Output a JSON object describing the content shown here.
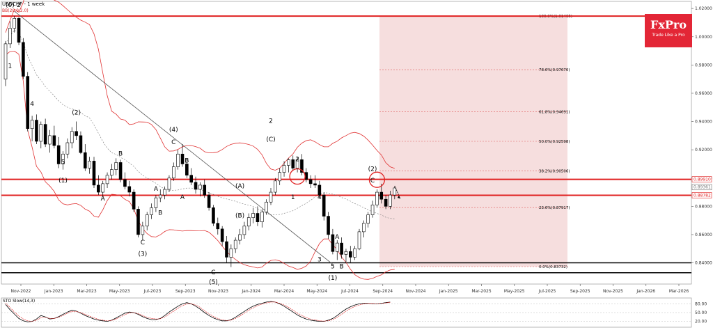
{
  "header": {
    "title": "USDCHF - 1 week",
    "subtitle": "BB(20,0,2.0)"
  },
  "logo": {
    "brand": "FxPro",
    "tagline": "Trade Like a Pro"
  },
  "chart_data": {
    "type": "candlestick",
    "symbol": "USDCHF",
    "timeframe": "1 week",
    "ylim": [
      0.825,
      1.025
    ],
    "y_ticks": [
      "1.02000",
      "1.00000",
      "0.98000",
      "0.96000",
      "0.94000",
      "0.92000",
      "0.90000",
      "0.88000",
      "0.86000",
      "0.84000"
    ],
    "x_ticks": [
      "Nov-2022",
      "Jan-2023",
      "Mar-2023",
      "May-2023",
      "Jul-2023",
      "Sep-2023",
      "Nov-2023",
      "Jan-2024",
      "Mar-2024",
      "May-2024",
      "Jul-2024",
      "Sep-2024",
      "Nov-2024",
      "Jan-2025",
      "Mar-2025",
      "May-2025",
      "Jul-2025",
      "Sep-2025",
      "Nov-2025",
      "Jan-2026",
      "Mar-2026"
    ],
    "price_labels": [
      {
        "value": "0.89910",
        "color": "#e02020"
      },
      {
        "value": "0.89361",
        "color": "#777777"
      },
      {
        "value": "0.88782",
        "color": "#e02020"
      }
    ],
    "horizontal_lines": [
      {
        "value": 1.0146,
        "color": "#e02020",
        "width": 2
      },
      {
        "value": 0.8991,
        "color": "#e02020",
        "width": 2
      },
      {
        "value": 0.8878,
        "color": "#e02020",
        "width": 2
      },
      {
        "value": 0.84,
        "color": "#000000",
        "width": 1.5
      },
      {
        "value": 0.833,
        "color": "#000000",
        "width": 1.5
      }
    ],
    "fibonacci": {
      "levels": [
        {
          "label": "100.0%(1.01465)",
          "value": 1.01465
        },
        {
          "label": "78.6%(0.97670)",
          "value": 0.9767
        },
        {
          "label": "61.8%(0.94691)",
          "value": 0.94691
        },
        {
          "label": "50.0%(0.92598)",
          "value": 0.92598
        },
        {
          "label": "38.2%(0.90506)",
          "value": 0.90506
        },
        {
          "label": "23.6%(0.87917)",
          "value": 0.87917
        },
        {
          "label": "0.0%(0.83732)",
          "value": 0.83732
        }
      ],
      "zone_color": "#f6dede"
    },
    "candles": [
      [
        0.97,
        0.997,
        0.965,
        0.995
      ],
      [
        0.995,
        1.011,
        0.992,
        1.006
      ],
      [
        1.006,
        1.0147,
        1.003,
        1.013
      ],
      [
        1.013,
        1.014,
        0.994,
        0.996
      ],
      [
        0.996,
        0.999,
        0.97,
        0.972
      ],
      [
        0.972,
        0.975,
        0.933,
        0.935
      ],
      [
        0.935,
        0.944,
        0.926,
        0.941
      ],
      [
        0.941,
        0.945,
        0.924,
        0.926
      ],
      [
        0.926,
        0.94,
        0.921,
        0.938
      ],
      [
        0.938,
        0.942,
        0.922,
        0.924
      ],
      [
        0.924,
        0.934,
        0.918,
        0.93
      ],
      [
        0.93,
        0.937,
        0.921,
        0.923
      ],
      [
        0.923,
        0.929,
        0.907,
        0.91
      ],
      [
        0.91,
        0.919,
        0.906,
        0.917
      ],
      [
        0.917,
        0.928,
        0.914,
        0.925
      ],
      [
        0.925,
        0.936,
        0.921,
        0.933
      ],
      [
        0.933,
        0.94,
        0.927,
        0.93
      ],
      [
        0.93,
        0.933,
        0.917,
        0.918
      ],
      [
        0.918,
        0.924,
        0.905,
        0.907
      ],
      [
        0.907,
        0.915,
        0.903,
        0.912
      ],
      [
        0.912,
        0.915,
        0.893,
        0.895
      ],
      [
        0.895,
        0.902,
        0.888,
        0.89
      ],
      [
        0.89,
        0.898,
        0.887,
        0.896
      ],
      [
        0.896,
        0.904,
        0.893,
        0.902
      ],
      [
        0.902,
        0.91,
        0.899,
        0.906
      ],
      [
        0.906,
        0.914,
        0.902,
        0.911
      ],
      [
        0.911,
        0.913,
        0.897,
        0.899
      ],
      [
        0.899,
        0.904,
        0.892,
        0.894
      ],
      [
        0.894,
        0.898,
        0.887,
        0.89
      ],
      [
        0.89,
        0.892,
        0.876,
        0.878
      ],
      [
        0.878,
        0.88,
        0.858,
        0.86
      ],
      [
        0.86,
        0.869,
        0.856,
        0.866
      ],
      [
        0.866,
        0.876,
        0.863,
        0.874
      ],
      [
        0.874,
        0.882,
        0.871,
        0.879
      ],
      [
        0.879,
        0.888,
        0.876,
        0.886
      ],
      [
        0.886,
        0.892,
        0.883,
        0.888
      ],
      [
        0.888,
        0.894,
        0.885,
        0.892
      ],
      [
        0.892,
        0.902,
        0.89,
        0.9
      ],
      [
        0.9,
        0.911,
        0.898,
        0.908
      ],
      [
        0.908,
        0.92,
        0.906,
        0.917
      ],
      [
        0.917,
        0.924,
        0.908,
        0.91
      ],
      [
        0.91,
        0.914,
        0.9,
        0.902
      ],
      [
        0.902,
        0.907,
        0.895,
        0.897
      ],
      [
        0.897,
        0.901,
        0.889,
        0.892
      ],
      [
        0.892,
        0.897,
        0.887,
        0.895
      ],
      [
        0.895,
        0.899,
        0.886,
        0.888
      ],
      [
        0.888,
        0.89,
        0.877,
        0.879
      ],
      [
        0.879,
        0.881,
        0.866,
        0.868
      ],
      [
        0.868,
        0.872,
        0.86,
        0.864
      ],
      [
        0.864,
        0.866,
        0.852,
        0.855
      ],
      [
        0.855,
        0.859,
        0.84,
        0.844
      ],
      [
        0.844,
        0.853,
        0.837,
        0.85
      ],
      [
        0.85,
        0.858,
        0.847,
        0.856
      ],
      [
        0.856,
        0.864,
        0.853,
        0.86
      ],
      [
        0.86,
        0.869,
        0.857,
        0.866
      ],
      [
        0.866,
        0.875,
        0.863,
        0.872
      ],
      [
        0.872,
        0.879,
        0.868,
        0.875
      ],
      [
        0.875,
        0.88,
        0.866,
        0.869
      ],
      [
        0.869,
        0.878,
        0.865,
        0.876
      ],
      [
        0.876,
        0.885,
        0.874,
        0.883
      ],
      [
        0.883,
        0.893,
        0.881,
        0.89
      ],
      [
        0.89,
        0.9,
        0.888,
        0.898
      ],
      [
        0.898,
        0.907,
        0.895,
        0.904
      ],
      [
        0.904,
        0.912,
        0.901,
        0.909
      ],
      [
        0.909,
        0.914,
        0.904,
        0.913
      ],
      [
        0.913,
        0.916,
        0.905,
        0.907
      ],
      [
        0.907,
        0.915,
        0.904,
        0.913
      ],
      [
        0.913,
        0.917,
        0.902,
        0.904
      ],
      [
        0.904,
        0.907,
        0.897,
        0.899
      ],
      [
        0.899,
        0.902,
        0.893,
        0.896
      ],
      [
        0.896,
        0.902,
        0.893,
        0.895
      ],
      [
        0.895,
        0.898,
        0.886,
        0.888
      ],
      [
        0.888,
        0.89,
        0.87,
        0.873
      ],
      [
        0.873,
        0.876,
        0.857,
        0.86
      ],
      [
        0.86,
        0.864,
        0.846,
        0.848
      ],
      [
        0.848,
        0.856,
        0.842,
        0.854
      ],
      [
        0.854,
        0.858,
        0.843,
        0.846
      ],
      [
        0.846,
        0.85,
        0.84,
        0.848
      ],
      [
        0.848,
        0.852,
        0.84,
        0.844
      ],
      [
        0.844,
        0.852,
        0.842,
        0.85
      ],
      [
        0.85,
        0.864,
        0.849,
        0.862
      ],
      [
        0.862,
        0.87,
        0.858,
        0.868
      ],
      [
        0.868,
        0.876,
        0.865,
        0.874
      ],
      [
        0.874,
        0.884,
        0.872,
        0.881
      ],
      [
        0.881,
        0.892,
        0.879,
        0.89
      ],
      [
        0.89,
        0.896,
        0.882,
        0.885
      ],
      [
        0.885,
        0.888,
        0.878,
        0.88
      ],
      [
        0.88,
        0.891,
        0.878,
        0.888
      ],
      [
        0.888,
        0.894,
        0.885,
        0.893
      ]
    ],
    "wave_labels": [
      {
        "text": "(0)",
        "i": 1,
        "y": 1.021
      },
      {
        "text": "2",
        "i": 3,
        "y": 1.021
      },
      {
        "text": "1",
        "i": 1,
        "y": 0.978
      },
      {
        "text": "4",
        "i": 6,
        "y": 0.951
      },
      {
        "text": "3",
        "i": 5,
        "y": 0.937
      },
      {
        "text": "(2)",
        "i": 16,
        "y": 0.945
      },
      {
        "text": "5",
        "i": 13,
        "y": 0.91
      },
      {
        "text": "(1)",
        "i": 13,
        "y": 0.897
      },
      {
        "text": "B",
        "i": 26,
        "y": 0.916
      },
      {
        "text": "A",
        "i": 22,
        "y": 0.884
      },
      {
        "text": "B",
        "i": 35,
        "y": 0.874
      },
      {
        "text": "C",
        "i": 31,
        "y": 0.853
      },
      {
        "text": "(3)",
        "i": 31,
        "y": 0.845
      },
      {
        "text": "A",
        "i": 34,
        "y": 0.891
      },
      {
        "text": "(4)",
        "i": 38,
        "y": 0.933
      },
      {
        "text": "C",
        "i": 38,
        "y": 0.924
      },
      {
        "text": "B",
        "i": 41,
        "y": 0.911
      },
      {
        "text": "A",
        "i": 40,
        "y": 0.885
      },
      {
        "text": "C",
        "i": 47,
        "y": 0.832
      },
      {
        "text": "(5)",
        "i": 47,
        "y": 0.825
      },
      {
        "text": "(A)",
        "i": 53,
        "y": 0.893
      },
      {
        "text": "(B)",
        "i": 53,
        "y": 0.872
      },
      {
        "text": "2",
        "i": 60,
        "y": 0.939
      },
      {
        "text": "(C)",
        "i": 60,
        "y": 0.926
      },
      {
        "text": "2",
        "i": 66,
        "y": 0.912
      },
      {
        "text": "1",
        "i": 65,
        "y": 0.885
      },
      {
        "text": "4",
        "i": 71,
        "y": 0.885
      },
      {
        "text": "3",
        "i": 71,
        "y": 0.841
      },
      {
        "text": "A",
        "i": 75,
        "y": 0.857
      },
      {
        "text": "5",
        "i": 74,
        "y": 0.836
      },
      {
        "text": "B",
        "i": 76,
        "y": 0.836
      },
      {
        "text": "(1)",
        "i": 74,
        "y": 0.828
      },
      {
        "text": "(2)",
        "i": 83,
        "y": 0.905
      },
      {
        "text": "C",
        "i": 83,
        "y": 0.897
      }
    ],
    "circle_markers": [
      {
        "i": 66,
        "y": 0.9011
      },
      {
        "i": 84,
        "y": 0.8988
      }
    ],
    "indicator": {
      "name": "STO Slow(14,3)",
      "levels": [
        "80.00",
        "50.00",
        "20.00"
      ],
      "main": [
        78,
        60,
        45,
        30,
        22,
        18,
        20,
        28,
        40,
        35,
        28,
        30,
        36,
        44,
        52,
        58,
        55,
        48,
        40,
        34,
        28,
        24,
        22,
        20,
        24,
        32,
        40,
        48,
        52,
        50,
        44,
        36,
        30,
        26,
        26,
        30,
        40,
        52,
        62,
        72,
        80,
        84,
        80,
        72,
        62,
        50,
        40,
        32,
        26,
        22,
        22,
        26,
        34,
        44,
        54,
        64,
        72,
        78,
        82,
        86,
        88,
        86,
        80,
        72,
        62,
        52,
        42,
        34,
        28,
        24,
        22,
        20,
        20,
        24,
        30,
        40,
        52,
        62,
        70,
        76,
        80,
        82,
        82,
        80,
        80,
        82,
        84,
        86
      ],
      "signal": [
        82,
        68,
        52,
        38,
        28,
        22,
        20,
        24,
        32,
        34,
        30,
        30,
        34,
        40,
        48,
        54,
        54,
        50,
        44,
        38,
        32,
        27,
        24,
        22,
        23,
        28,
        35,
        43,
        49,
        50,
        46,
        40,
        34,
        30,
        28,
        29,
        35,
        45,
        55,
        65,
        74,
        80,
        80,
        76,
        68,
        56,
        46,
        37,
        30,
        25,
        23,
        24,
        30,
        38,
        48,
        58,
        66,
        74,
        79,
        83,
        86,
        86,
        82,
        76,
        68,
        58,
        48,
        40,
        33,
        28,
        25,
        22,
        21,
        22,
        26,
        34,
        44,
        55,
        64,
        71,
        76,
        80,
        81,
        81,
        80,
        81,
        83,
        85
      ]
    },
    "trendline": {
      "from": {
        "i": 2,
        "y": 1.018
      },
      "to": {
        "i": 74,
        "y": 0.839
      }
    }
  }
}
